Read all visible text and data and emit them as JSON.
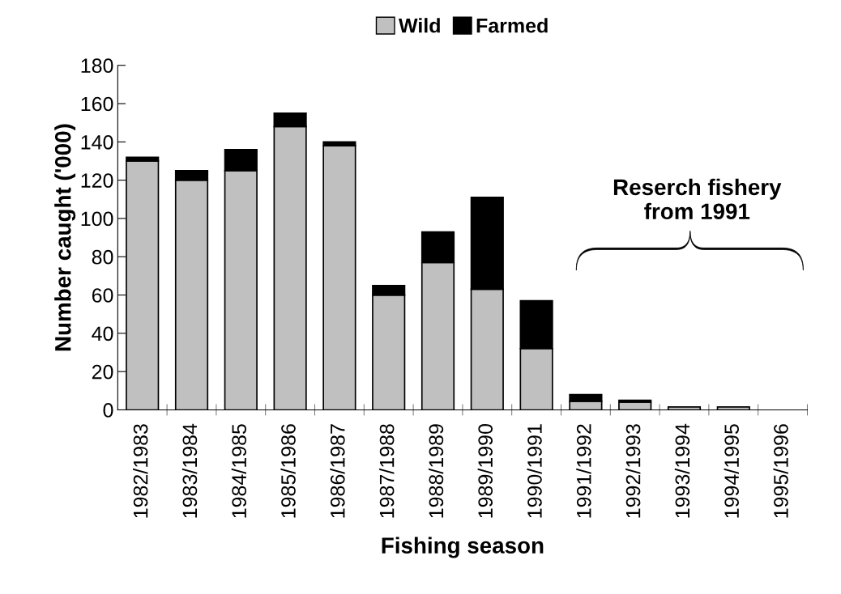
{
  "chart_data": {
    "type": "bar",
    "stacked": true,
    "xlabel": "Fishing season",
    "ylabel": "Number caught ('000)",
    "categories": [
      "1982/1983",
      "1983/1984",
      "1984/1985",
      "1985/1986",
      "1986/1987",
      "1987/1988",
      "1988/1989",
      "1989/1990",
      "1990/1991",
      "1991/1992",
      "1992/1993",
      "1993/1994",
      "1994/1995",
      "1995/1996"
    ],
    "series": [
      {
        "name": "Wild",
        "color": "#c0c0c0",
        "values": [
          130,
          120,
          125,
          148,
          138,
          60,
          77,
          63,
          32,
          4.5,
          4,
          1.5,
          1.5,
          0
        ]
      },
      {
        "name": "Farmed",
        "color": "#000000",
        "values": [
          2,
          5,
          11,
          7,
          2,
          5,
          16,
          48,
          25,
          3.5,
          1,
          0,
          0,
          0
        ]
      }
    ],
    "ylim": [
      0,
      180
    ],
    "yticks": [
      0,
      20,
      40,
      60,
      80,
      100,
      120,
      140,
      160,
      180
    ],
    "grid": false,
    "legend": "top",
    "annotations": [
      "Reserch fishery\nfrom 1991"
    ]
  }
}
